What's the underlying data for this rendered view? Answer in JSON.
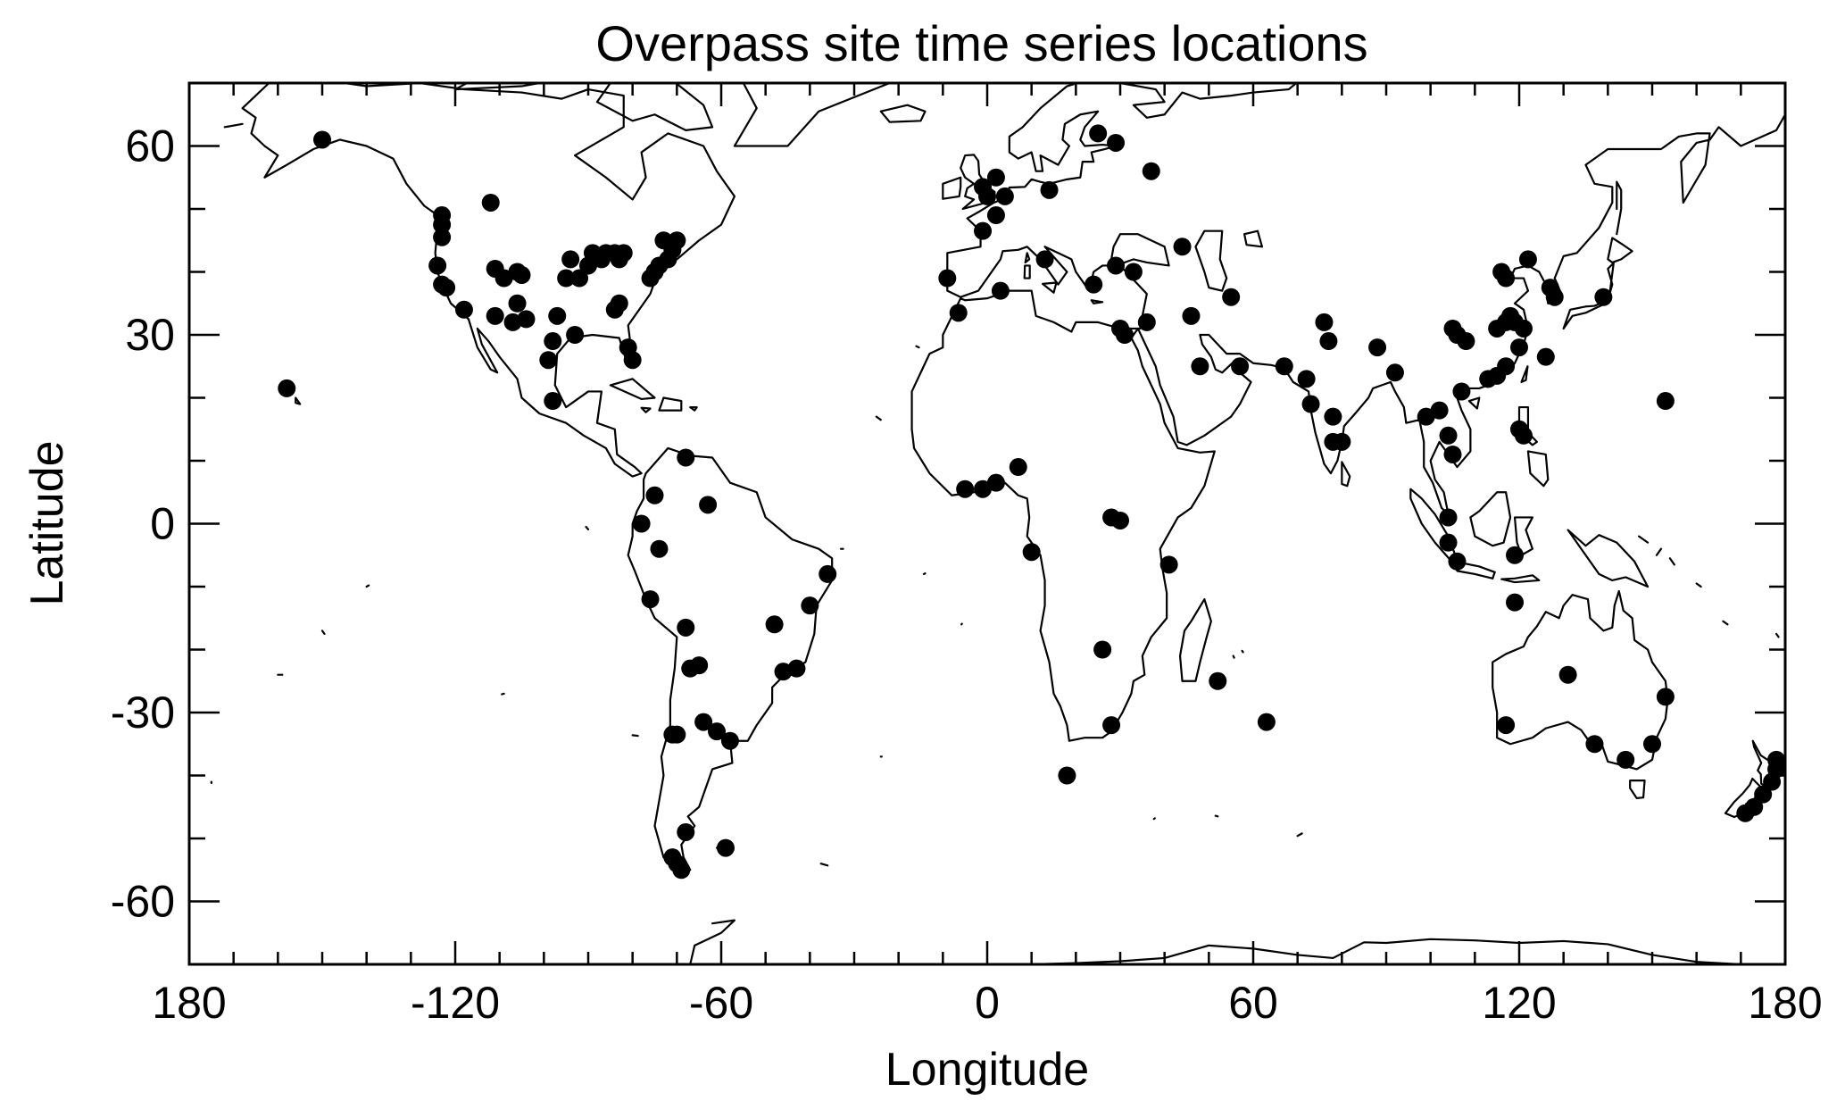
{
  "chart_data": {
    "type": "scatter",
    "title": "Overpass site time series locations",
    "xlabel": "Longitude",
    "ylabel": "Latitude",
    "xlim": [
      -180,
      180
    ],
    "ylim": [
      -70,
      70
    ],
    "x_ticks": [
      -180,
      -120,
      -60,
      0,
      60,
      120,
      180
    ],
    "x_tick_labels": [
      "180",
      "-120",
      "-60",
      "0",
      "60",
      "120",
      "180"
    ],
    "y_ticks": [
      -60,
      -30,
      0,
      30,
      60
    ],
    "y_tick_labels": [
      "-60",
      "-30",
      "0",
      "30",
      "60"
    ],
    "x_minor_step": 10,
    "y_minor_step": 10,
    "grid": false,
    "legend": "none",
    "colors": {
      "points": "#000000",
      "coastline": "#000000"
    },
    "points": [
      [
        -150,
        61
      ],
      [
        -158,
        21.5
      ],
      [
        -123,
        49
      ],
      [
        -123,
        47.5
      ],
      [
        -123,
        45.5
      ],
      [
        -124,
        41
      ],
      [
        -123,
        38
      ],
      [
        -122,
        37.5
      ],
      [
        -118,
        34
      ],
      [
        -112,
        51
      ],
      [
        -111,
        40.5
      ],
      [
        -109,
        39
      ],
      [
        -106,
        40
      ],
      [
        -111,
        33
      ],
      [
        -105,
        39.5
      ],
      [
        -106,
        35
      ],
      [
        -107,
        32
      ],
      [
        -104,
        32.5
      ],
      [
        -98,
        29
      ],
      [
        -99,
        26
      ],
      [
        -97,
        33
      ],
      [
        -95,
        39
      ],
      [
        -94,
        42
      ],
      [
        -93,
        30
      ],
      [
        -92,
        39
      ],
      [
        -90,
        41
      ],
      [
        -89,
        43
      ],
      [
        -87,
        42
      ],
      [
        -86,
        43
      ],
      [
        -84,
        43
      ],
      [
        -83,
        42
      ],
      [
        -82,
        43
      ],
      [
        -84,
        34
      ],
      [
        -83,
        35
      ],
      [
        -81,
        28
      ],
      [
        -80,
        26
      ],
      [
        -76,
        39
      ],
      [
        -75,
        40
      ],
      [
        -74,
        41
      ],
      [
        -72,
        42
      ],
      [
        -73,
        45
      ],
      [
        -70,
        45
      ],
      [
        -71,
        43.5
      ],
      [
        -98,
        19.5
      ],
      [
        -68,
        10.5
      ],
      [
        -75,
        4.5
      ],
      [
        -63,
        3
      ],
      [
        -78,
        0
      ],
      [
        -74,
        -4
      ],
      [
        -76,
        -12
      ],
      [
        -48,
        -16
      ],
      [
        -68,
        -16.5
      ],
      [
        -67,
        -23
      ],
      [
        -65,
        -22.5
      ],
      [
        -46,
        -23.5
      ],
      [
        -43,
        -23
      ],
      [
        -40,
        -13
      ],
      [
        -36,
        -8
      ],
      [
        -70,
        -33.5
      ],
      [
        -71,
        -33.5
      ],
      [
        -64,
        -31.5
      ],
      [
        -61,
        -33
      ],
      [
        -58,
        -34.5
      ],
      [
        -68,
        -49
      ],
      [
        -59,
        -51.5
      ],
      [
        -71,
        -53
      ],
      [
        -70,
        -54
      ],
      [
        -69,
        -55
      ],
      [
        -9,
        39
      ],
      [
        -6.5,
        33.5
      ],
      [
        -1,
        46.5
      ],
      [
        2,
        49
      ],
      [
        0,
        52
      ],
      [
        -1,
        53.5
      ],
      [
        4,
        52
      ],
      [
        2,
        55
      ],
      [
        14,
        53
      ],
      [
        13,
        42
      ],
      [
        3,
        37
      ],
      [
        24,
        38
      ],
      [
        29,
        41
      ],
      [
        33,
        40
      ],
      [
        30,
        31
      ],
      [
        31,
        30
      ],
      [
        36,
        32
      ],
      [
        25,
        62
      ],
      [
        29,
        60.5
      ],
      [
        37,
        56
      ],
      [
        44,
        44
      ],
      [
        46,
        33
      ],
      [
        55,
        36
      ],
      [
        48,
        25
      ],
      [
        57,
        25
      ],
      [
        67,
        25
      ],
      [
        72,
        23
      ],
      [
        73,
        19
      ],
      [
        76,
        32
      ],
      [
        77,
        29
      ],
      [
        78,
        17
      ],
      [
        80,
        13
      ],
      [
        78,
        13
      ],
      [
        88,
        28
      ],
      [
        92,
        24
      ],
      [
        99,
        17
      ],
      [
        102,
        18
      ],
      [
        104,
        14
      ],
      [
        105,
        11
      ],
      [
        104,
        1
      ],
      [
        104,
        -3
      ],
      [
        106,
        -6
      ],
      [
        107,
        21
      ],
      [
        108,
        29
      ],
      [
        105,
        31
      ],
      [
        106,
        30
      ],
      [
        113,
        23
      ],
      [
        115,
        23.5
      ],
      [
        117,
        25
      ],
      [
        115,
        31
      ],
      [
        117,
        32
      ],
      [
        117,
        39
      ],
      [
        116,
        40
      ],
      [
        118,
        33
      ],
      [
        119,
        32
      ],
      [
        121,
        31
      ],
      [
        120,
        28
      ],
      [
        122,
        42
      ],
      [
        127,
        37.5
      ],
      [
        128,
        36
      ],
      [
        139,
        36
      ],
      [
        126,
        26.5
      ],
      [
        120,
        15
      ],
      [
        121,
        14
      ],
      [
        119,
        -5
      ],
      [
        119,
        -12.5
      ],
      [
        153,
        19.5
      ],
      [
        117,
        -32
      ],
      [
        131,
        -24
      ],
      [
        137,
        -35
      ],
      [
        144,
        -37.5
      ],
      [
        150,
        -35
      ],
      [
        153,
        -27.5
      ],
      [
        178,
        -37.5
      ],
      [
        178,
        -39
      ],
      [
        177,
        -41
      ],
      [
        175,
        -43
      ],
      [
        173,
        -45
      ],
      [
        171,
        -46
      ],
      [
        -5,
        5.5
      ],
      [
        -1,
        5.5
      ],
      [
        2,
        6.5
      ],
      [
        7,
        9
      ],
      [
        10,
        -4.5
      ],
      [
        28,
        1
      ],
      [
        30,
        0.5
      ],
      [
        41,
        -6.5
      ],
      [
        26,
        -20
      ],
      [
        28,
        -32
      ],
      [
        18,
        -40
      ],
      [
        52,
        -25
      ],
      [
        63,
        -31.5
      ]
    ]
  }
}
